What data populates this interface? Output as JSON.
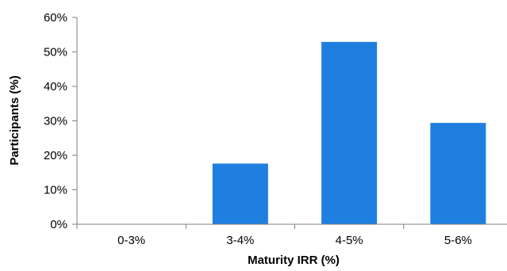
{
  "chart_data": {
    "type": "bar",
    "title": "",
    "xlabel": "Maturity IRR (%)",
    "ylabel": "Participants (%)",
    "categories": [
      "0-3%",
      "3-4%",
      "4-5%",
      "5-6%"
    ],
    "values": [
      0,
      17.6,
      52.9,
      29.4
    ],
    "ylim": [
      0,
      60
    ],
    "yticks": [
      0,
      10,
      20,
      30,
      40,
      50,
      60
    ],
    "ytick_labels": [
      "0%",
      "10%",
      "20%",
      "30%",
      "40%",
      "50%",
      "60%"
    ],
    "grid": false,
    "legend": "none",
    "bar_color": "#1f7fe0",
    "axis_color": "#7f7f7f"
  }
}
